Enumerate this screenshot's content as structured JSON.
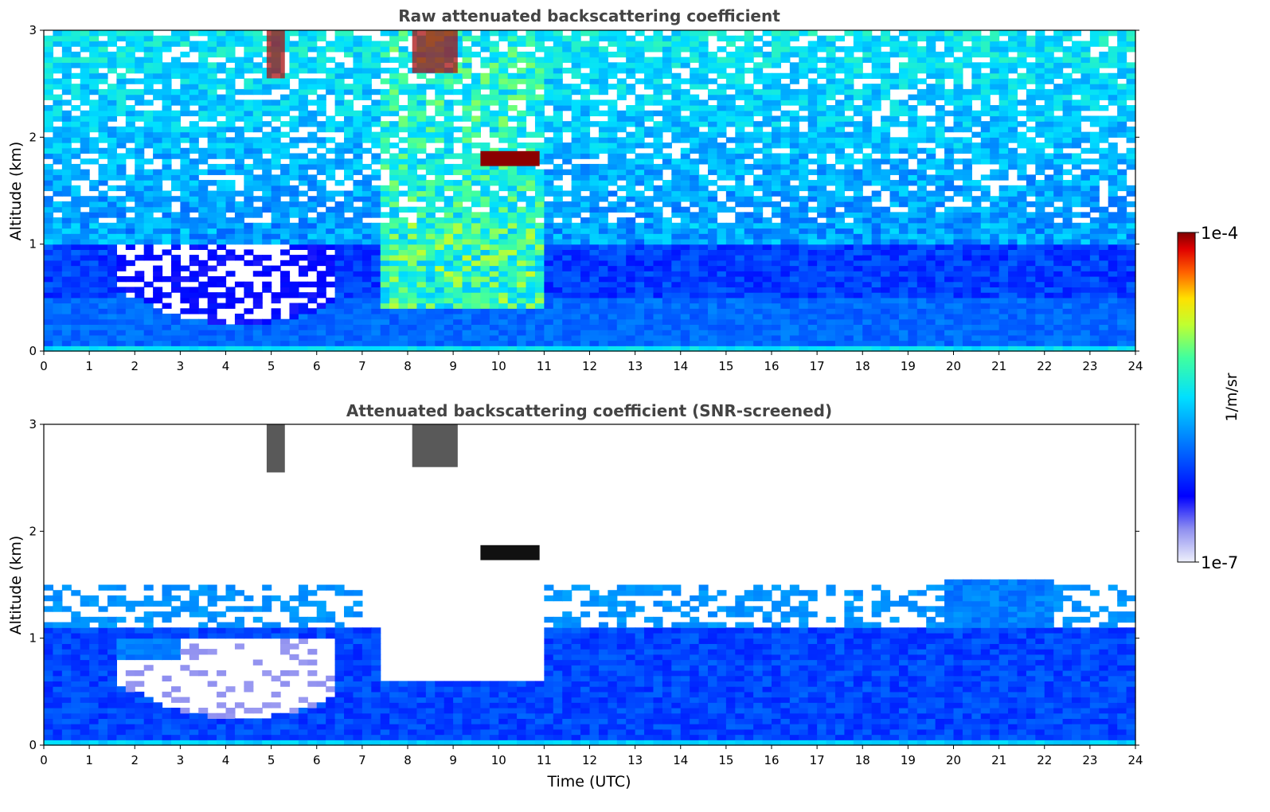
{
  "chart_data": [
    {
      "type": "heatmap",
      "title": "Raw attenuated backscattering coefficient",
      "xlabel": "",
      "ylabel": "Altitude (km)",
      "xlim": [
        0,
        24
      ],
      "ylim": [
        0,
        3
      ],
      "xticks": [
        "0",
        "1",
        "2",
        "3",
        "4",
        "5",
        "6",
        "7",
        "8",
        "9",
        "10",
        "11",
        "12",
        "13",
        "14",
        "15",
        "16",
        "17",
        "18",
        "19",
        "20",
        "21",
        "22",
        "23",
        "24"
      ],
      "yticks": [
        "0",
        "1",
        "2",
        "3"
      ],
      "screened": false,
      "cloud_layer": {
        "x_range": [
          9.6,
          10.9
        ],
        "altitude_km": 1.8
      },
      "high_clouds": [
        {
          "x_range": [
            4.9,
            5.3
          ],
          "altitude_range": [
            2.55,
            3.0
          ]
        },
        {
          "x_range": [
            8.1,
            9.1
          ],
          "altitude_range": [
            2.6,
            3.0
          ]
        }
      ],
      "low_gap": {
        "x_range": [
          1.5,
          6.5
        ],
        "altitude_range": [
          0.25,
          1.0
        ]
      },
      "boundary_layer_top_km": 1.1
    },
    {
      "type": "heatmap",
      "title": "Attenuated backscattering coefficient (SNR-screened)",
      "xlabel": "Time (UTC)",
      "ylabel": "Altitude (km)",
      "xlim": [
        0,
        24
      ],
      "ylim": [
        0,
        3
      ],
      "xticks": [
        "0",
        "1",
        "2",
        "3",
        "4",
        "5",
        "6",
        "7",
        "8",
        "9",
        "10",
        "11",
        "12",
        "13",
        "14",
        "15",
        "16",
        "17",
        "18",
        "19",
        "20",
        "21",
        "22",
        "23",
        "24"
      ],
      "yticks": [
        "0",
        "1",
        "2",
        "3"
      ],
      "screened": true,
      "cloud_layer": {
        "x_range": [
          9.6,
          10.9
        ],
        "altitude_km": 1.8
      },
      "high_clouds": [
        {
          "x_range": [
            4.9,
            5.3
          ],
          "altitude_range": [
            2.55,
            3.0
          ]
        },
        {
          "x_range": [
            8.1,
            9.1
          ],
          "altitude_range": [
            2.6,
            3.0
          ]
        }
      ],
      "low_gap": {
        "x_range": [
          1.5,
          6.5
        ],
        "altitude_range": [
          0.25,
          1.0
        ]
      },
      "boundary_layer_top_km": 1.1
    }
  ],
  "colorbar": {
    "label": "1/m/sr",
    "max_label": "1e-4",
    "min_label": "1e-7",
    "scale": "log",
    "colormap": [
      "#e8e8f8",
      "#0000ff",
      "#0080ff",
      "#00ffff",
      "#80ff80",
      "#ffff00",
      "#ff8000",
      "#ff0000",
      "#800000"
    ]
  }
}
